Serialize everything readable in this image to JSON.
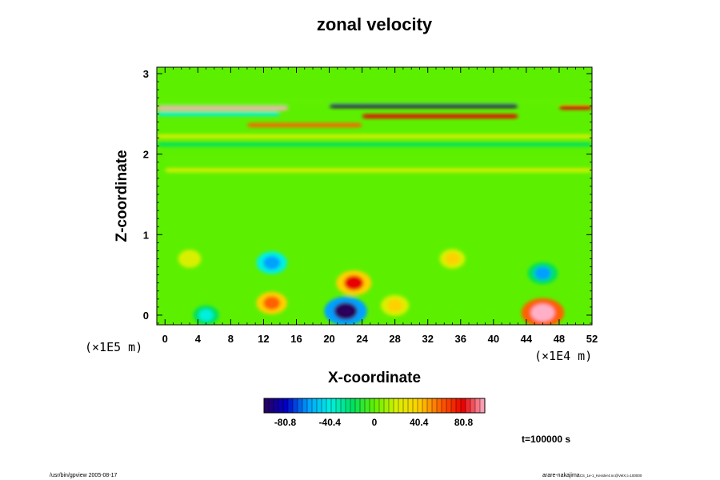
{
  "chart_data": {
    "type": "heatmap",
    "title": "zonal velocity",
    "xlabel": "X-coordinate",
    "ylabel": "Z-coordinate",
    "x_scale_note": "(×1E4 m)",
    "y_scale_note": "(×1E5 m)",
    "xlim": [
      -1,
      52
    ],
    "ylim": [
      -0.12,
      3.08
    ],
    "x_ticks": [
      0,
      4,
      8,
      12,
      16,
      20,
      24,
      28,
      32,
      36,
      40,
      44,
      48,
      52
    ],
    "y_ticks": [
      0,
      1,
      2,
      3
    ],
    "colorbar": {
      "range": [
        -100,
        100
      ],
      "tick_values": [
        -80.8,
        -40.4,
        0,
        40.4,
        80.8
      ],
      "tick_labels": [
        "-80.8",
        "-40.4",
        "0",
        "40.4",
        "80.8"
      ],
      "colors": [
        "#2a005a",
        "#0000c8",
        "#00a0ff",
        "#00f0e0",
        "#00e060",
        "#60f000",
        "#d8f000",
        "#ffd000",
        "#ff6000",
        "#e80000",
        "#ffb0c8"
      ]
    },
    "background_color": "#5cf000",
    "features": [
      {
        "kind": "band",
        "z": 2.65,
        "x0": -1,
        "x1": 52,
        "value": 0
      },
      {
        "kind": "band",
        "z": 2.57,
        "x0": -1,
        "x1": 15,
        "value": 90
      },
      {
        "kind": "band",
        "z": 2.6,
        "x0": 20,
        "x1": 43,
        "value": -95
      },
      {
        "kind": "band",
        "z": 2.58,
        "x0": 48,
        "x1": 52,
        "value": 88
      },
      {
        "kind": "band",
        "z": 2.5,
        "x0": -1,
        "x1": 14,
        "value": -45
      },
      {
        "kind": "band",
        "z": 2.47,
        "x0": 24,
        "x1": 43,
        "value": 70
      },
      {
        "kind": "band",
        "z": 2.36,
        "x0": 10,
        "x1": 24,
        "value": 55
      },
      {
        "kind": "band",
        "z": 2.22,
        "x0": -1,
        "x1": 52,
        "value": 28
      },
      {
        "kind": "band",
        "z": 2.12,
        "x0": -1,
        "x1": 52,
        "value": -15
      },
      {
        "kind": "band",
        "z": 1.92,
        "x0": 0,
        "x1": 52,
        "value": -10
      },
      {
        "kind": "band",
        "z": 1.8,
        "x0": 0,
        "x1": 52,
        "value": 12
      },
      {
        "kind": "blob",
        "x": 13,
        "z": 0.65,
        "value": -55
      },
      {
        "kind": "blob",
        "x": 46,
        "z": 0.52,
        "value": -52
      },
      {
        "kind": "blob",
        "x": 23,
        "z": 0.4,
        "value": 72
      },
      {
        "kind": "blob",
        "x": 22,
        "z": 0.05,
        "value": -100
      },
      {
        "kind": "blob",
        "x": 46,
        "z": 0.03,
        "value": 100
      },
      {
        "kind": "blob",
        "x": 13,
        "z": 0.15,
        "value": 55
      },
      {
        "kind": "blob",
        "x": 5,
        "z": 0.0,
        "value": -35
      },
      {
        "kind": "blob",
        "x": 28,
        "z": 0.12,
        "value": 45
      },
      {
        "kind": "blob",
        "x": 35,
        "z": 0.7,
        "value": 35
      },
      {
        "kind": "blob",
        "x": 3,
        "z": 0.7,
        "value": 25
      }
    ]
  },
  "annotations": {
    "time_label": "t=100000 s",
    "footer_left": "/usr/bin/gpview 2005-08-17",
    "footer_right": "arare-nakajima",
    "footer_right_small": "CS_1e-1_Kessler4.nc@VelX,t=100000"
  }
}
